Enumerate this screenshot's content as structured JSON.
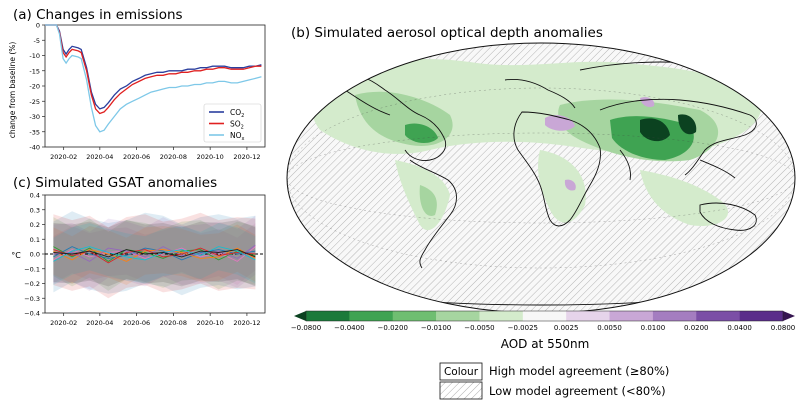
{
  "chart_data": [
    {
      "type": "line",
      "title": "(a) Changes in emissions",
      "xlabel": "",
      "ylabel": "change from baseline (%)",
      "x_start": "2020-01-01",
      "x_end": "2020-12-31",
      "xlim": [
        "2020-01-01",
        "2020-12-31"
      ],
      "ylim": [
        -40,
        0
      ],
      "yticks": [
        "0",
        "-5",
        "-10",
        "-15",
        "-20",
        "-25",
        "-30",
        "-35",
        "-40"
      ],
      "xticks": [
        "2020-02",
        "2020-04",
        "2020-06",
        "2020-08",
        "2020-10",
        "2020-12"
      ],
      "grid": false,
      "legend_position": "bottom-right",
      "x": [
        "2020-01-01",
        "2020-01-20",
        "2020-01-25",
        "2020-01-31",
        "2020-02-05",
        "2020-02-10",
        "2020-02-15",
        "2020-02-25",
        "2020-03-01",
        "2020-03-10",
        "2020-03-18",
        "2020-03-25",
        "2020-04-01",
        "2020-04-08",
        "2020-04-15",
        "2020-04-25",
        "2020-05-05",
        "2020-05-15",
        "2020-05-25",
        "2020-06-05",
        "2020-06-15",
        "2020-06-25",
        "2020-07-05",
        "2020-07-15",
        "2020-07-25",
        "2020-08-05",
        "2020-08-15",
        "2020-08-25",
        "2020-09-05",
        "2020-09-15",
        "2020-09-25",
        "2020-10-05",
        "2020-10-15",
        "2020-10-25",
        "2020-11-05",
        "2020-11-15",
        "2020-11-25",
        "2020-12-05",
        "2020-12-15",
        "2020-12-25"
      ],
      "series": [
        {
          "name": "CO₂",
          "sub_text": "CO",
          "sub": "2",
          "color": "#2b3f9e",
          "values": [
            0,
            0,
            -2,
            -8,
            -9.5,
            -8,
            -7,
            -7.5,
            -8,
            -14,
            -22,
            -26,
            -27.5,
            -27,
            -25.5,
            -23,
            -21,
            -20,
            -18.5,
            -17.5,
            -16.5,
            -16,
            -15.5,
            -15.5,
            -15,
            -15,
            -15,
            -14.5,
            -14.5,
            -14,
            -14,
            -13.5,
            -13.5,
            -13.5,
            -14,
            -14,
            -14,
            -13.5,
            -13.5,
            -13
          ]
        },
        {
          "name": "SO₂",
          "sub_text": "SO",
          "sub": "2",
          "color": "#e02020",
          "values": [
            0,
            0,
            -2.5,
            -9,
            -10.5,
            -9,
            -8,
            -8.5,
            -9,
            -15,
            -23,
            -27.5,
            -29,
            -28.5,
            -27,
            -24.5,
            -22.5,
            -21,
            -19.5,
            -18.5,
            -17.5,
            -17,
            -16.5,
            -16.5,
            -16,
            -16,
            -15.5,
            -15.5,
            -15,
            -15,
            -14.5,
            -14.5,
            -14,
            -14,
            -14.5,
            -14.5,
            -14.5,
            -14,
            -13.5,
            -13.5
          ]
        },
        {
          "name": "NOₓ",
          "sub_text": "NO",
          "sub": "x",
          "color": "#7ec8e8",
          "values": [
            0,
            0,
            -3,
            -11,
            -12.5,
            -11,
            -10,
            -10.5,
            -11,
            -18,
            -27,
            -33,
            -35,
            -34.5,
            -32.5,
            -30,
            -27.5,
            -26,
            -25,
            -24,
            -23,
            -22,
            -21.5,
            -21,
            -20.5,
            -20.5,
            -20,
            -20,
            -19.5,
            -19.5,
            -19,
            -19,
            -18.5,
            -18.5,
            -19,
            -19,
            -18.5,
            -18,
            -17.5,
            -17
          ]
        }
      ]
    },
    {
      "type": "line",
      "title": "(c) Simulated GSAT anomalies",
      "xlabel": "",
      "ylabel": "°C",
      "x_start": "2020-01-01",
      "x_end": "2020-12-31",
      "xlim": [
        "2020-01-01",
        "2020-12-31"
      ],
      "ylim": [
        -0.4,
        0.4
      ],
      "yticks": [
        "0.4",
        "0.3",
        "0.2",
        "0.1",
        "0.0",
        "−0.1",
        "−0.2",
        "−0.3",
        "−0.4"
      ],
      "xticks": [
        "2020-02",
        "2020-04",
        "2020-06",
        "2020-08",
        "2020-10",
        "2020-12"
      ],
      "grid": false,
      "zero_line": "dashed",
      "x": [
        "2020-01-15",
        "2020-02-15",
        "2020-03-15",
        "2020-04-15",
        "2020-05-15",
        "2020-06-15",
        "2020-07-15",
        "2020-08-15",
        "2020-09-15",
        "2020-10-15",
        "2020-11-15",
        "2020-12-15"
      ],
      "series": [
        {
          "color": "#e377c2",
          "values": [
            -0.04,
            0.03,
            -0.02,
            0.01,
            0.02,
            -0.03,
            0.0,
            0.04,
            -0.02,
            0.01,
            -0.05,
            0.05
          ]
        },
        {
          "color": "#2ca02c",
          "values": [
            0.05,
            -0.02,
            0.04,
            -0.05,
            0.03,
            0.01,
            -0.03,
            0.02,
            0.03,
            -0.04,
            0.02,
            -0.01
          ]
        },
        {
          "color": "#1f77b4",
          "values": [
            -0.02,
            0.05,
            0.0,
            -0.03,
            -0.01,
            0.04,
            0.02,
            -0.04,
            0.01,
            0.03,
            0.0,
            0.02
          ]
        },
        {
          "color": "#ff7f0e",
          "values": [
            0.02,
            -0.04,
            0.03,
            0.0,
            -0.05,
            0.02,
            0.03,
            0.01,
            -0.03,
            -0.02,
            0.04,
            -0.03
          ]
        },
        {
          "color": "#9467bd",
          "values": [
            0.0,
            0.01,
            -0.05,
            0.04,
            0.02,
            -0.02,
            0.05,
            -0.01,
            0.0,
            0.02,
            -0.03,
            0.06
          ]
        },
        {
          "color": "#d62728",
          "values": [
            0.03,
            -0.01,
            0.02,
            -0.06,
            0.01,
            0.03,
            -0.02,
            0.0,
            0.04,
            -0.01,
            0.01,
            0.0
          ]
        },
        {
          "color": "#17becf",
          "values": [
            -0.05,
            0.02,
            0.05,
            0.01,
            -0.02,
            -0.04,
            0.01,
            0.03,
            -0.01,
            0.05,
            0.02,
            -0.04
          ]
        },
        {
          "color": "#222222",
          "values": [
            0.01,
            0.0,
            0.02,
            -0.02,
            0.03,
            0.0,
            0.01,
            -0.02,
            0.02,
            0.01,
            0.03,
            -0.02
          ]
        }
      ]
    },
    {
      "type": "heatmap",
      "title": "(b) Simulated aerosol optical depth anomalies",
      "xlabel": "",
      "ylabel": "",
      "colorbar": {
        "label": "AOD at 550nm",
        "ticks": [
          "−0.0800",
          "−0.0400",
          "−0.0200",
          "−0.0100",
          "−0.0050",
          "−0.0025",
          "0.0025",
          "0.0050",
          "0.0100",
          "0.0200",
          "0.0400",
          "0.0800"
        ],
        "colors": [
          "#0b4220",
          "#1b7a3a",
          "#3fa352",
          "#6fbe71",
          "#a6d5a0",
          "#d4ebcc",
          "#f7f7f7",
          "#e6d4ea",
          "#c9a7d6",
          "#a47dc0",
          "#7b4fa6",
          "#5a2d8a",
          "#351550"
        ]
      },
      "legend": {
        "colour_box": "Colour",
        "colour_label": "High model agreement (≥80%)",
        "hatch_label": "Low model agreement (<80%)"
      }
    }
  ]
}
